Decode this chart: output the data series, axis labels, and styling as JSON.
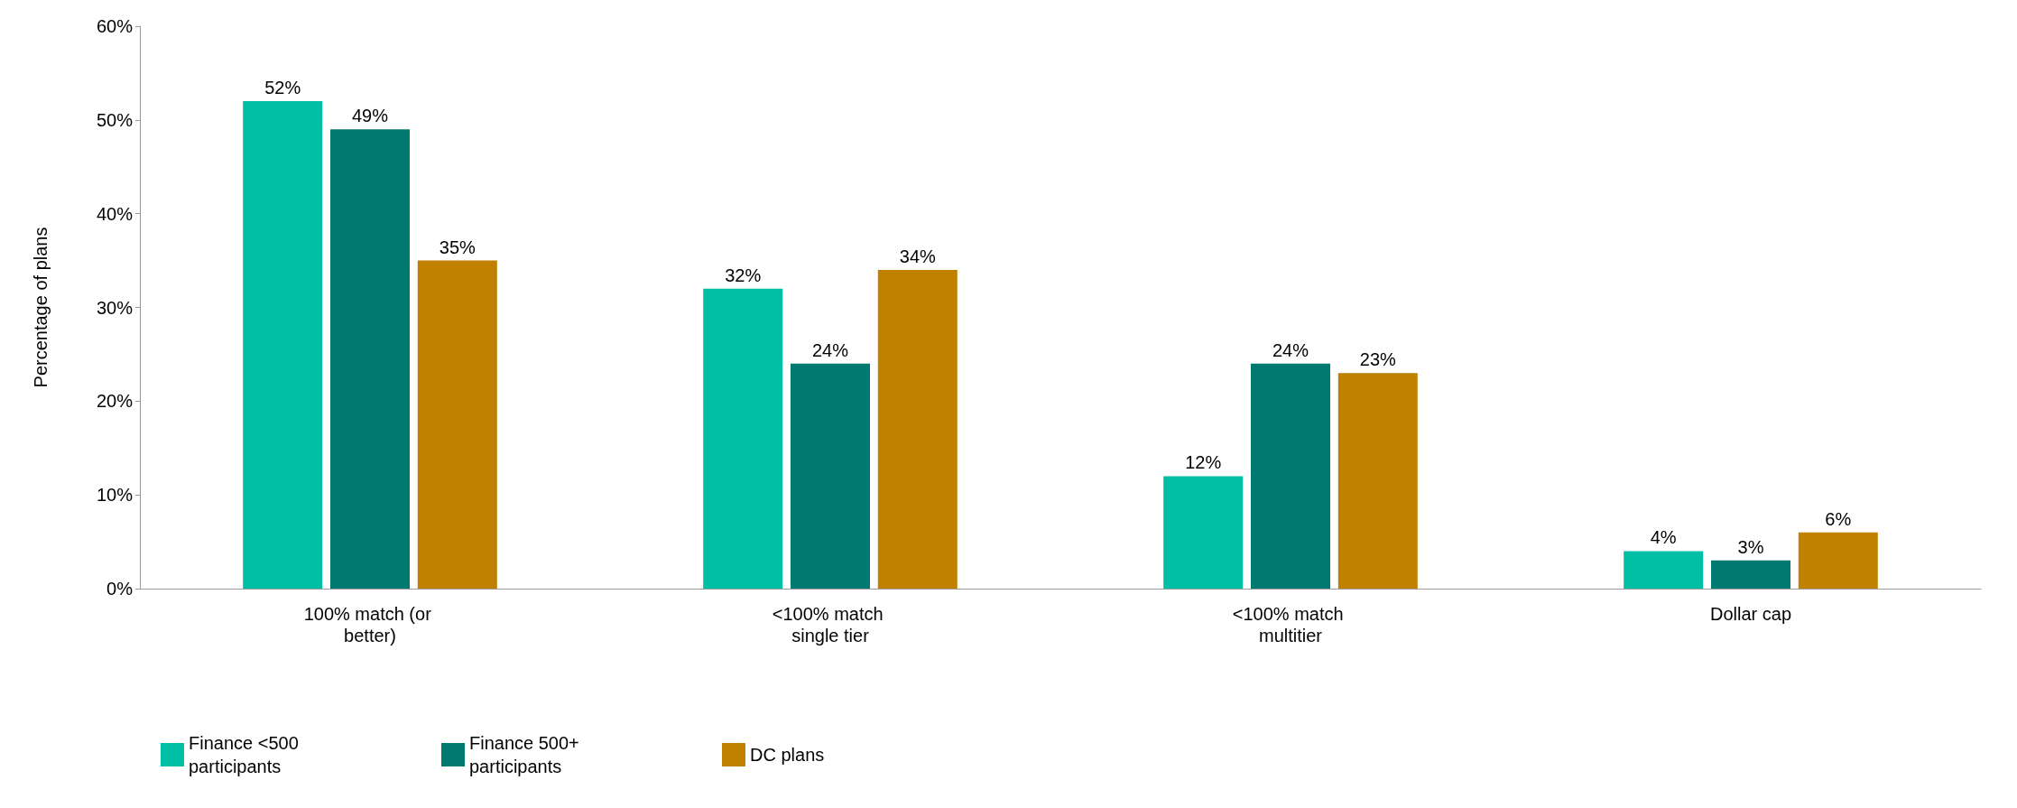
{
  "chart_data": {
    "type": "bar",
    "ylabel": "Percentage of plans",
    "categories": [
      "100% match (or better)",
      "<100% match single tier",
      "<100% match multitier",
      "Dollar cap"
    ],
    "series": [
      {
        "name": "Finance <500 participants",
        "color": "#00bfa5",
        "values": [
          52,
          32,
          12,
          4
        ],
        "value_labels": [
          "52%",
          "32%",
          "12%",
          "4%"
        ]
      },
      {
        "name": "Finance 500+ participants",
        "color": "#007a70",
        "values": [
          49,
          24,
          24,
          3
        ],
        "value_labels": [
          "49%",
          "24%",
          "24%",
          "3%"
        ]
      },
      {
        "name": "DC plans",
        "color": "#c08000",
        "values": [
          35,
          34,
          23,
          6
        ],
        "value_labels": [
          "35%",
          "34%",
          "23%",
          "6%"
        ]
      }
    ],
    "ylim": [
      0,
      60
    ],
    "yticks": [
      {
        "value": 0,
        "label": "0%"
      },
      {
        "value": 10,
        "label": "10%"
      },
      {
        "value": 20,
        "label": "20%"
      },
      {
        "value": 30,
        "label": "30%"
      },
      {
        "value": 40,
        "label": "40%"
      },
      {
        "value": 50,
        "label": "50%"
      },
      {
        "value": 60,
        "label": "60%"
      }
    ],
    "grid": false,
    "legend": "bottom left"
  }
}
